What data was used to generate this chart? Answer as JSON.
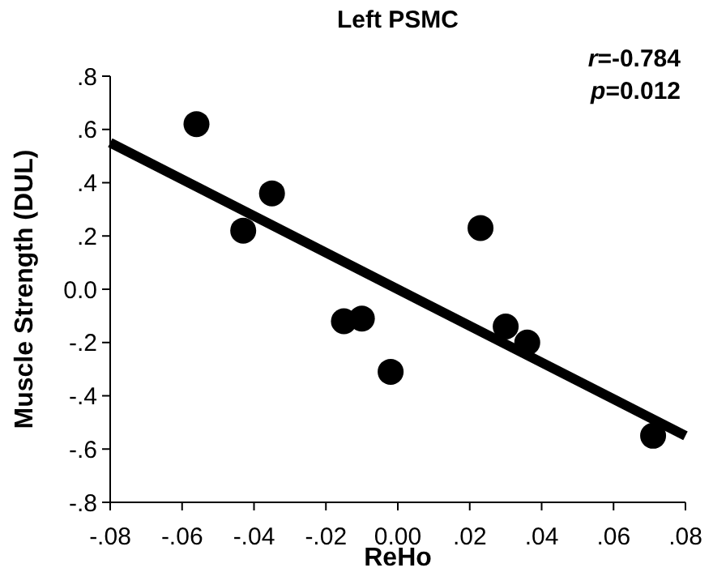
{
  "chart_data": {
    "type": "scatter",
    "title": "Left PSMC",
    "xlabel": "ReHo",
    "ylabel": "Muscle Strength (DUL)",
    "annotations": [
      "r=-0.784",
      "p=0.012"
    ],
    "xlim": [
      -0.08,
      0.08
    ],
    "ylim": [
      -0.8,
      0.8
    ],
    "xticks": [
      {
        "value": -0.08,
        "label": "-.08"
      },
      {
        "value": -0.06,
        "label": "-.06"
      },
      {
        "value": -0.04,
        "label": "-.04"
      },
      {
        "value": -0.02,
        "label": "-.02"
      },
      {
        "value": 0,
        "label": "0.00"
      },
      {
        "value": 0.02,
        "label": ".02"
      },
      {
        "value": 0.04,
        "label": ".04"
      },
      {
        "value": 0.06,
        "label": ".06"
      },
      {
        "value": 0.08,
        "label": ".08"
      }
    ],
    "yticks": [
      {
        "value": -0.8,
        "label": "-.8"
      },
      {
        "value": -0.6,
        "label": "-.6"
      },
      {
        "value": -0.4,
        "label": "-.4"
      },
      {
        "value": -0.2,
        "label": "-.2"
      },
      {
        "value": 0,
        "label": "0.0"
      },
      {
        "value": 0.2,
        "label": ".2"
      },
      {
        "value": 0.4,
        "label": ".4"
      },
      {
        "value": 0.6,
        "label": ".6"
      },
      {
        "value": 0.8,
        "label": ".8"
      }
    ],
    "grid": false,
    "series": [
      {
        "marker": "circle",
        "color": "#000000",
        "x": [
          -0.056,
          -0.043,
          -0.035,
          -0.015,
          -0.01,
          -0.002,
          0.023,
          0.03,
          0.036,
          0.071
        ],
        "values": [
          0.62,
          0.22,
          0.36,
          -0.12,
          -0.11,
          -0.31,
          0.23,
          -0.14,
          -0.2,
          -0.55
        ]
      },
      {
        "type": "line",
        "color": "#000000",
        "line_style": "solid",
        "x": [
          -0.08,
          0.08
        ],
        "values": [
          0.55,
          -0.55
        ]
      }
    ]
  }
}
